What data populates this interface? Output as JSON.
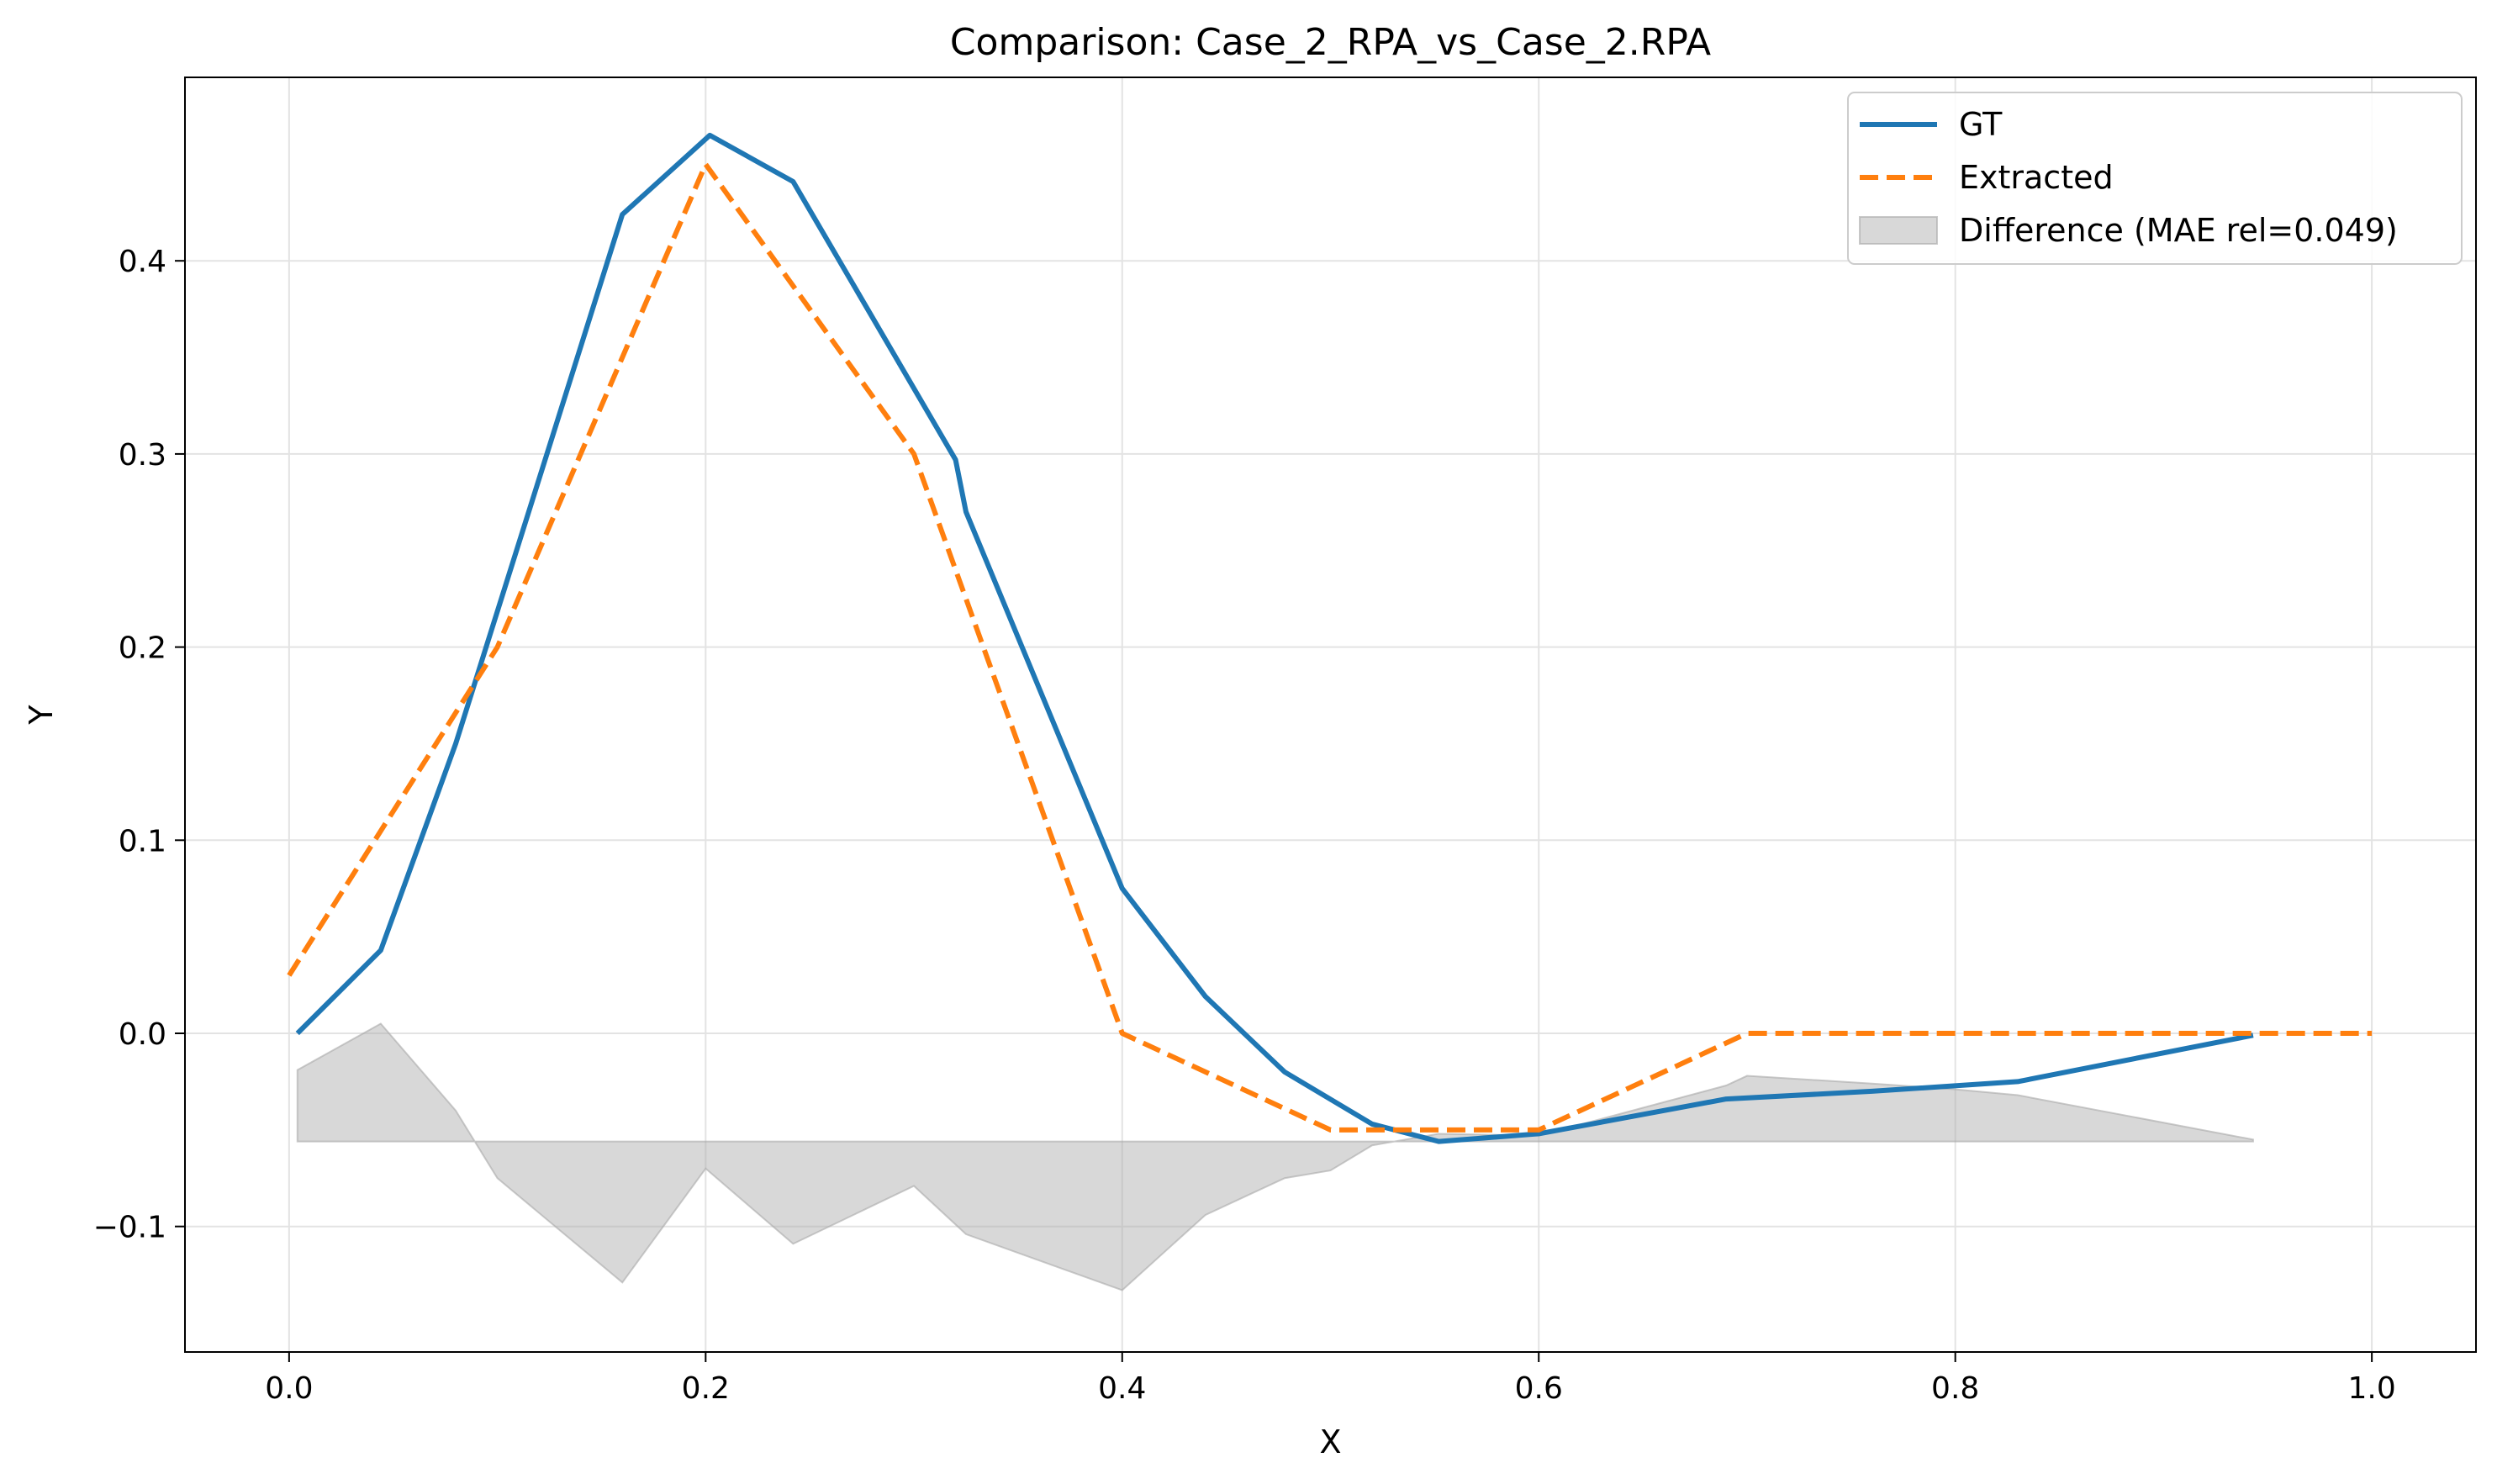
{
  "chart_data": {
    "type": "line",
    "title": "Comparison: Case_2_RPA_vs_Case_2.RPA",
    "xlabel": "X",
    "ylabel": "Y",
    "xlim": [
      -0.05,
      1.05
    ],
    "ylim": [
      -0.165,
      0.495
    ],
    "xticks": [
      0.0,
      0.2,
      0.4,
      0.6,
      0.8,
      1.0
    ],
    "xtick_labels": [
      "0.0",
      "0.2",
      "0.4",
      "0.6",
      "0.8",
      "1.0"
    ],
    "yticks": [
      -0.1,
      0.0,
      0.1,
      0.2,
      0.3,
      0.4
    ],
    "ytick_labels": [
      "−0.1",
      "0.0",
      "0.1",
      "0.2",
      "0.3",
      "0.4"
    ],
    "grid": true,
    "legend": "upper right",
    "series": [
      {
        "name": "GT",
        "style": "solid",
        "color": "#1f77b4",
        "x": [
          0.004,
          0.044,
          0.08,
          0.16,
          0.202,
          0.242,
          0.32,
          0.325,
          0.4,
          0.44,
          0.478,
          0.52,
          0.552,
          0.6,
          0.69,
          0.76,
          0.83,
          0.943
        ],
        "y": [
          0.0,
          0.043,
          0.15,
          0.424,
          0.465,
          0.441,
          0.297,
          0.27,
          0.075,
          0.019,
          -0.02,
          -0.047,
          -0.056,
          -0.052,
          -0.034,
          -0.03,
          -0.025,
          -0.001
        ]
      },
      {
        "name": "Extracted",
        "style": "dashed",
        "color": "#ff7f0e",
        "x": [
          0.0,
          0.1,
          0.2,
          0.3,
          0.4,
          0.5,
          0.6,
          0.7,
          0.8,
          0.9,
          1.0
        ],
        "y": [
          0.03,
          0.2,
          0.45,
          0.3,
          0.0,
          -0.05,
          -0.05,
          0.0,
          0.0,
          0.0,
          0.0
        ]
      },
      {
        "name": "Difference (MAE rel=0.049)",
        "style": "fill",
        "color": "#a9a9a9",
        "baseline": -0.056,
        "x": [
          0.004,
          0.044,
          0.08,
          0.1,
          0.16,
          0.2,
          0.242,
          0.3,
          0.325,
          0.4,
          0.44,
          0.478,
          0.5,
          0.52,
          0.552,
          0.6,
          0.69,
          0.7,
          0.76,
          0.8,
          0.83,
          0.943
        ],
        "y": [
          -0.019,
          0.005,
          -0.04,
          -0.075,
          -0.129,
          -0.07,
          -0.109,
          -0.079,
          -0.104,
          -0.133,
          -0.094,
          -0.075,
          -0.071,
          -0.058,
          -0.052,
          -0.053,
          -0.027,
          -0.022,
          -0.026,
          -0.029,
          -0.032,
          -0.055
        ]
      }
    ]
  }
}
